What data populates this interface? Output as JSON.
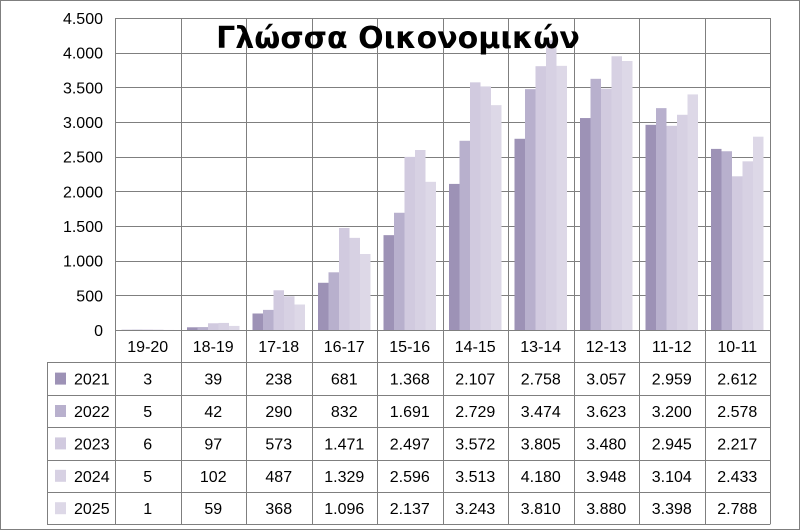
{
  "chart_data": {
    "type": "bar",
    "title": "Γλώσσα Οικονομικών",
    "categories": [
      "19-20",
      "18-19",
      "17-18",
      "16-17",
      "15-16",
      "14-15",
      "13-14",
      "12-13",
      "11-12",
      "10-11"
    ],
    "ylim": [
      0,
      4500
    ],
    "yticks": [
      0,
      500,
      1000,
      1500,
      2000,
      2500,
      3000,
      3500,
      4000,
      4500
    ],
    "ytick_labels": [
      "0",
      "500",
      "1.000",
      "1.500",
      "2.000",
      "2.500",
      "3.000",
      "3.500",
      "4.000",
      "4.500"
    ],
    "grid": true,
    "legend": "data-table",
    "series": [
      {
        "name": "2021",
        "color": "#9d92b6",
        "values": [
          3,
          39,
          238,
          681,
          1368,
          2107,
          2758,
          3057,
          2959,
          2612
        ],
        "labels": [
          "3",
          "39",
          "238",
          "681",
          "1.368",
          "2.107",
          "2.758",
          "3.057",
          "2.959",
          "2.612"
        ]
      },
      {
        "name": "2022",
        "color": "#b8b0cd",
        "values": [
          5,
          42,
          290,
          832,
          1691,
          2729,
          3474,
          3623,
          3200,
          2578
        ],
        "labels": [
          "5",
          "42",
          "290",
          "832",
          "1.691",
          "2.729",
          "3.474",
          "3.623",
          "3.200",
          "2.578"
        ]
      },
      {
        "name": "2023",
        "color": "#d1cadf",
        "values": [
          6,
          97,
          573,
          1471,
          2497,
          3572,
          3805,
          3480,
          2945,
          2217
        ],
        "labels": [
          "6",
          "97",
          "573",
          "1.471",
          "2.497",
          "3.572",
          "3.805",
          "3.480",
          "2.945",
          "2.217"
        ]
      },
      {
        "name": "2024",
        "color": "#d7d1e3",
        "values": [
          5,
          102,
          487,
          1329,
          2596,
          3513,
          4180,
          3948,
          3104,
          2433
        ],
        "labels": [
          "5",
          "102",
          "487",
          "1.329",
          "2.596",
          "3.513",
          "4.180",
          "3.948",
          "3.104",
          "2.433"
        ]
      },
      {
        "name": "2025",
        "color": "#ddd8e7",
        "values": [
          1,
          59,
          368,
          1096,
          2137,
          3243,
          3810,
          3880,
          3398,
          2788
        ],
        "labels": [
          "1",
          "59",
          "368",
          "1.096",
          "2.137",
          "3.243",
          "3.810",
          "3.880",
          "3.398",
          "2.788"
        ]
      }
    ]
  }
}
